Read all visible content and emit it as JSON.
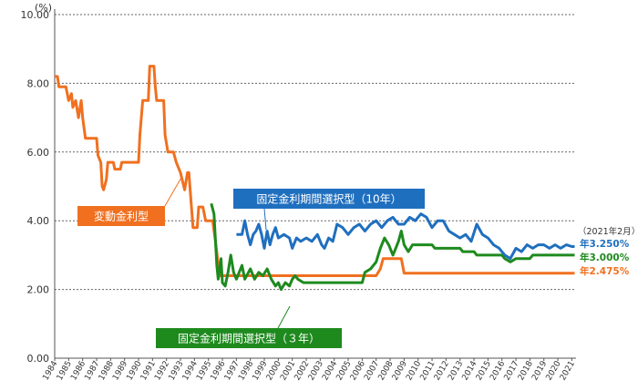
{
  "chart_data": {
    "type": "line",
    "unit_label": "(%)",
    "ylim": [
      0,
      10
    ],
    "y_ticks": [
      "0.00",
      "2.00",
      "4.00",
      "6.00",
      "8.00",
      "10.00"
    ],
    "xlim": [
      1984,
      2021.3
    ],
    "x_ticks": [
      "1984",
      "1985",
      "1986",
      "1987",
      "1988",
      "1989",
      "1990",
      "1991",
      "1992",
      "1993",
      "1994",
      "1995",
      "1996",
      "1997",
      "1998",
      "1999",
      "2000",
      "2001",
      "2002",
      "2003",
      "2004",
      "2005",
      "2006",
      "2007",
      "2008",
      "2009",
      "2010",
      "2011",
      "2012",
      "2013",
      "2014",
      "2015",
      "2016",
      "2017",
      "2018",
      "2019",
      "2020",
      "2021"
    ],
    "grid": "horizontal dotted",
    "date_note": "（2021年2月）",
    "colors": {
      "variable": "#f07020",
      "fixed3": "#1e8a1e",
      "fixed10": "#1f6fbf",
      "annotation_fill": "#f07020",
      "fixed3_fill": "#1e8a1e",
      "fixed10_fill": "#1f6fbf"
    },
    "series": [
      {
        "key": "variable",
        "name": "変動金利型",
        "end_label": "年2.475%",
        "points": [
          [
            1984.0,
            8.2
          ],
          [
            1984.2,
            8.2
          ],
          [
            1984.3,
            7.9
          ],
          [
            1984.8,
            7.9
          ],
          [
            1985.0,
            7.5
          ],
          [
            1985.2,
            7.7
          ],
          [
            1985.3,
            7.3
          ],
          [
            1985.5,
            7.5
          ],
          [
            1985.7,
            7.0
          ],
          [
            1985.9,
            7.5
          ],
          [
            1986.0,
            7.0
          ],
          [
            1986.2,
            6.4
          ],
          [
            1986.5,
            6.4
          ],
          [
            1987.0,
            6.4
          ],
          [
            1987.1,
            5.9
          ],
          [
            1987.3,
            5.7
          ],
          [
            1987.4,
            5.0
          ],
          [
            1987.5,
            4.9
          ],
          [
            1987.7,
            5.2
          ],
          [
            1987.8,
            5.7
          ],
          [
            1988.2,
            5.7
          ],
          [
            1988.3,
            5.5
          ],
          [
            1988.7,
            5.5
          ],
          [
            1988.8,
            5.7
          ],
          [
            1990.0,
            5.7
          ],
          [
            1990.1,
            6.5
          ],
          [
            1990.3,
            7.5
          ],
          [
            1990.7,
            7.5
          ],
          [
            1990.8,
            8.5
          ],
          [
            1991.1,
            8.5
          ],
          [
            1991.2,
            7.9
          ],
          [
            1991.3,
            7.5
          ],
          [
            1991.8,
            7.5
          ],
          [
            1991.9,
            6.5
          ],
          [
            1992.1,
            6.0
          ],
          [
            1992.5,
            6.0
          ],
          [
            1992.7,
            5.7
          ],
          [
            1993.0,
            5.4
          ],
          [
            1993.3,
            4.9
          ],
          [
            1993.5,
            5.4
          ],
          [
            1993.6,
            5.4
          ],
          [
            1993.9,
            3.8
          ],
          [
            1994.2,
            3.8
          ],
          [
            1994.3,
            4.4
          ],
          [
            1994.6,
            4.4
          ],
          [
            1994.8,
            4.0
          ],
          [
            1995.3,
            4.0
          ],
          [
            1995.5,
            3.4
          ],
          [
            1995.8,
            2.4
          ],
          [
            2007.0,
            2.4
          ],
          [
            2007.3,
            2.6
          ],
          [
            2007.5,
            2.9
          ],
          [
            2008.4,
            2.9
          ],
          [
            2008.8,
            2.9
          ],
          [
            2009.0,
            2.475
          ],
          [
            2021.2,
            2.475
          ]
        ]
      },
      {
        "key": "fixed3",
        "name": "固定金利期間選択型（３年）",
        "end_label": "年3.000%",
        "points": [
          [
            1995.2,
            4.5
          ],
          [
            1995.4,
            4.2
          ],
          [
            1995.6,
            2.7
          ],
          [
            1995.7,
            2.3
          ],
          [
            1995.9,
            2.9
          ],
          [
            1996.0,
            2.2
          ],
          [
            1996.2,
            2.1
          ],
          [
            1996.4,
            2.5
          ],
          [
            1996.6,
            3.0
          ],
          [
            1996.8,
            2.5
          ],
          [
            1997.0,
            2.3
          ],
          [
            1997.2,
            2.5
          ],
          [
            1997.4,
            2.7
          ],
          [
            1997.6,
            2.3
          ],
          [
            1998.0,
            2.6
          ],
          [
            1998.3,
            2.3
          ],
          [
            1998.6,
            2.5
          ],
          [
            1998.9,
            2.4
          ],
          [
            1999.2,
            2.6
          ],
          [
            1999.5,
            2.3
          ],
          [
            1999.8,
            2.1
          ],
          [
            2000.0,
            2.2
          ],
          [
            2000.2,
            2.0
          ],
          [
            2000.5,
            2.2
          ],
          [
            2000.8,
            2.1
          ],
          [
            2001.0,
            2.3
          ],
          [
            2001.2,
            2.4
          ],
          [
            2001.4,
            2.3
          ],
          [
            2001.8,
            2.2
          ],
          [
            2006.0,
            2.2
          ],
          [
            2006.2,
            2.5
          ],
          [
            2006.6,
            2.6
          ],
          [
            2007.0,
            2.8
          ],
          [
            2007.3,
            3.2
          ],
          [
            2007.6,
            3.5
          ],
          [
            2007.9,
            3.3
          ],
          [
            2008.2,
            3.0
          ],
          [
            2008.4,
            3.2
          ],
          [
            2008.6,
            3.4
          ],
          [
            2008.8,
            3.7
          ],
          [
            2009.0,
            3.3
          ],
          [
            2009.3,
            3.1
          ],
          [
            2009.6,
            3.3
          ],
          [
            2010.0,
            3.3
          ],
          [
            2011.0,
            3.3
          ],
          [
            2011.2,
            3.2
          ],
          [
            2012.0,
            3.2
          ],
          [
            2013.0,
            3.2
          ],
          [
            2013.2,
            3.1
          ],
          [
            2014.0,
            3.1
          ],
          [
            2014.2,
            3.0
          ],
          [
            2016.0,
            3.0
          ],
          [
            2016.2,
            2.9
          ],
          [
            2016.6,
            2.8
          ],
          [
            2017.0,
            2.9
          ],
          [
            2018.0,
            2.9
          ],
          [
            2018.2,
            3.0
          ],
          [
            2021.2,
            3.0
          ]
        ]
      },
      {
        "key": "fixed10",
        "name": "固定金利期間選択型（10年）",
        "end_label": "年3.250%",
        "points": [
          [
            1997.0,
            3.6
          ],
          [
            1997.4,
            3.6
          ],
          [
            1997.6,
            4.0
          ],
          [
            1997.8,
            3.6
          ],
          [
            1998.0,
            3.3
          ],
          [
            1998.2,
            3.6
          ],
          [
            1998.4,
            3.7
          ],
          [
            1998.6,
            3.9
          ],
          [
            1998.8,
            3.6
          ],
          [
            1999.0,
            3.2
          ],
          [
            1999.2,
            3.7
          ],
          [
            1999.4,
            3.3
          ],
          [
            1999.6,
            3.6
          ],
          [
            1999.8,
            3.8
          ],
          [
            2000.0,
            3.5
          ],
          [
            2000.4,
            3.6
          ],
          [
            2000.8,
            3.5
          ],
          [
            2001.0,
            3.2
          ],
          [
            2001.3,
            3.5
          ],
          [
            2001.6,
            3.4
          ],
          [
            2002.0,
            3.5
          ],
          [
            2002.4,
            3.4
          ],
          [
            2002.8,
            3.6
          ],
          [
            2003.1,
            3.3
          ],
          [
            2003.3,
            3.2
          ],
          [
            2003.6,
            3.5
          ],
          [
            2003.9,
            3.4
          ],
          [
            2004.2,
            3.9
          ],
          [
            2004.6,
            3.8
          ],
          [
            2005.0,
            3.6
          ],
          [
            2005.4,
            3.8
          ],
          [
            2005.8,
            3.9
          ],
          [
            2006.2,
            3.7
          ],
          [
            2006.6,
            3.9
          ],
          [
            2007.0,
            4.0
          ],
          [
            2007.4,
            3.8
          ],
          [
            2007.8,
            4.0
          ],
          [
            2008.2,
            4.1
          ],
          [
            2008.6,
            3.9
          ],
          [
            2009.0,
            3.9
          ],
          [
            2009.4,
            4.1
          ],
          [
            2009.8,
            4.0
          ],
          [
            2010.2,
            4.2
          ],
          [
            2010.6,
            4.1
          ],
          [
            2011.0,
            3.8
          ],
          [
            2011.4,
            4.0
          ],
          [
            2011.8,
            4.0
          ],
          [
            2012.2,
            3.7
          ],
          [
            2012.6,
            3.6
          ],
          [
            2013.0,
            3.5
          ],
          [
            2013.4,
            3.6
          ],
          [
            2013.8,
            3.4
          ],
          [
            2014.2,
            3.9
          ],
          [
            2014.6,
            3.6
          ],
          [
            2015.0,
            3.5
          ],
          [
            2015.4,
            3.3
          ],
          [
            2015.8,
            3.2
          ],
          [
            2016.2,
            3.0
          ],
          [
            2016.6,
            2.9
          ],
          [
            2017.0,
            3.2
          ],
          [
            2017.4,
            3.1
          ],
          [
            2017.8,
            3.3
          ],
          [
            2018.2,
            3.2
          ],
          [
            2018.6,
            3.3
          ],
          [
            2019.0,
            3.3
          ],
          [
            2019.4,
            3.2
          ],
          [
            2019.8,
            3.3
          ],
          [
            2020.2,
            3.2
          ],
          [
            2020.6,
            3.3
          ],
          [
            2021.0,
            3.25
          ],
          [
            2021.2,
            3.25
          ]
        ]
      }
    ]
  }
}
